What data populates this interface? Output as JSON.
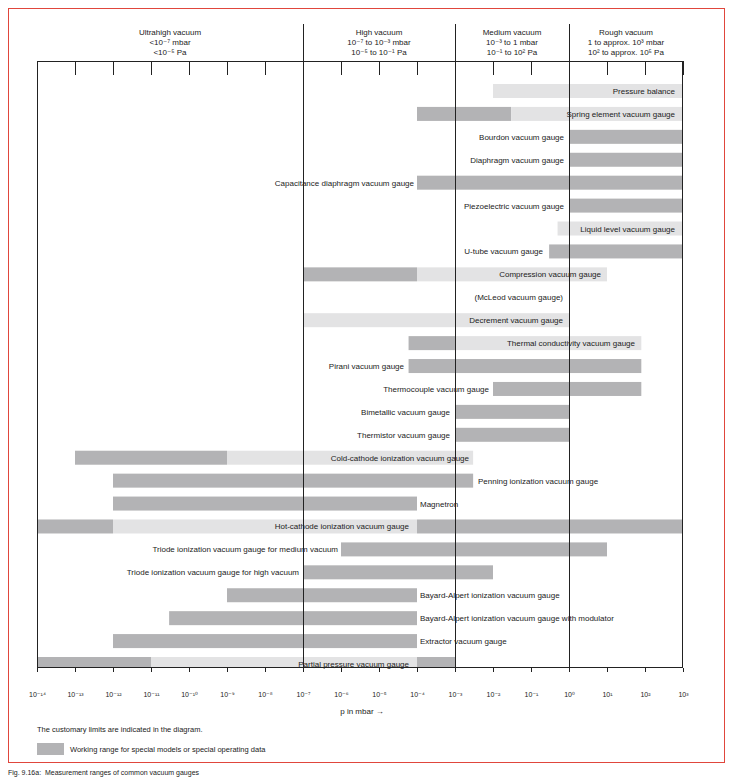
{
  "chart_data": {
    "type": "range_bar",
    "orientation": "horizontal",
    "log": "x",
    "xlim": [
      1e-14,
      1000
    ],
    "xticks": [
      {
        "value": 1e-14,
        "label": "10⁻¹⁴"
      },
      {
        "value": 1e-13,
        "label": "10⁻¹³"
      },
      {
        "value": 1e-12,
        "label": "10⁻¹²"
      },
      {
        "value": 1e-11,
        "label": "10⁻¹¹"
      },
      {
        "value": 1e-10,
        "label": "10⁻¹⁰"
      },
      {
        "value": 1e-09,
        "label": "10⁻⁹"
      },
      {
        "value": 1e-08,
        "label": "10⁻⁸"
      },
      {
        "value": 1e-07,
        "label": "10⁻⁷"
      },
      {
        "value": 1e-06,
        "label": "10⁻⁶"
      },
      {
        "value": 1e-05,
        "label": "10⁻⁵"
      },
      {
        "value": 0.0001,
        "label": "10⁻⁴"
      },
      {
        "value": 0.001,
        "label": "10⁻³"
      },
      {
        "value": 0.01,
        "label": "10⁻²"
      },
      {
        "value": 0.1,
        "label": "10⁻¹"
      },
      {
        "value": 1,
        "label": "10⁰"
      },
      {
        "value": 10,
        "label": "10¹"
      },
      {
        "value": 100,
        "label": "10²"
      },
      {
        "value": 1000,
        "label": "10³"
      }
    ],
    "xlabel": "p in mbar →",
    "regions": [
      {
        "name": "Ultrahigh vacuum",
        "mbar": "<10⁻⁷ mbar",
        "pa": "<10⁻⁵ Pa",
        "from": 1e-14,
        "to": 1e-07
      },
      {
        "name": "High vacuum",
        "mbar": "10⁻⁷ to 10⁻³ mbar",
        "pa": "10⁻⁵ to 10⁻¹ Pa",
        "from": 1e-07,
        "to": 0.001
      },
      {
        "name": "Medium vacuum",
        "mbar": "10⁻³ to 1 mbar",
        "pa": "10⁻¹ to 10² Pa",
        "from": 0.001,
        "to": 1
      },
      {
        "name": "Rough vacuum",
        "mbar": "1 to approx. 10³ mbar",
        "pa": "10² to approx. 10⁵ Pa",
        "from": 1,
        "to": 1000
      }
    ],
    "categories": [
      "Pressure balance",
      "Spring element vacuum gauge",
      "Bourdon vacuum gauge",
      "Diaphragm vacuum gauge",
      "Capacitance diaphragm vacuum gauge",
      "Piezoelectric vacuum gauge",
      "Liquid level vacuum gauge",
      "U-tube vacuum gauge",
      "Compression vacuum gauge",
      "(McLeod vacuum gauge)",
      "Decrement vacuum gauge",
      "Thermal conductivity vacuum gauge",
      "Pirani vacuum gauge",
      "Thermocouple vacuum gauge",
      "Bimetallic vacuum gauge",
      "Thermistor vacuum gauge",
      "Cold-cathode ionization vacuum gauge",
      "Penning ionization vacuum gauge",
      "Magnetron",
      "Hot-cathode ionization vacuum gauge",
      "Triode ionization vacuum gauge for medium vacuum",
      "Triode ionization vacuum gauge for high vacuum",
      "Bayard-Alpert ionization vacuum gauge",
      "Bayard-Alpert ionization vacuum gauge with modulator",
      "Extractor vacuum gauge",
      "Partial pressure vacuum gauge"
    ],
    "ranges": [
      [
        {
          "from": 0.01,
          "to": 1000,
          "color": "#e3e3e4"
        }
      ],
      [
        {
          "from": 0.0001,
          "to": 0.03,
          "color": "#b3b3b5"
        },
        {
          "from": 0.03,
          "to": 1000,
          "color": "#e3e3e4"
        }
      ],
      [
        {
          "from": 1,
          "to": 1000,
          "color": "#b3b3b5"
        }
      ],
      [
        {
          "from": 1,
          "to": 1000,
          "color": "#b3b3b5"
        }
      ],
      [
        {
          "from": 0.0001,
          "to": 1000,
          "color": "#b3b3b5"
        }
      ],
      [
        {
          "from": 1,
          "to": 1000,
          "color": "#b3b3b5"
        }
      ],
      [
        {
          "from": 0.5,
          "to": 1000,
          "color": "#e3e3e4"
        }
      ],
      [
        {
          "from": 0.3,
          "to": 1000,
          "color": "#b3b3b5"
        }
      ],
      [
        {
          "from": 1e-07,
          "to": 0.0001,
          "color": "#b3b3b5"
        },
        {
          "from": 0.0001,
          "to": 10,
          "color": "#e3e3e4"
        }
      ],
      [],
      [
        {
          "from": 1e-07,
          "to": 1,
          "color": "#e3e3e4"
        }
      ],
      [
        {
          "from": 6e-05,
          "to": 0.001,
          "color": "#b3b3b5"
        },
        {
          "from": 0.001,
          "to": 80,
          "color": "#e3e3e4"
        }
      ],
      [
        {
          "from": 6e-05,
          "to": 80,
          "color": "#b3b3b5"
        }
      ],
      [
        {
          "from": 0.01,
          "to": 80,
          "color": "#b3b3b5"
        }
      ],
      [
        {
          "from": 0.001,
          "to": 1,
          "color": "#b3b3b5"
        }
      ],
      [
        {
          "from": 0.001,
          "to": 1,
          "color": "#b3b3b5"
        }
      ],
      [
        {
          "from": 1e-13,
          "to": 1e-09,
          "color": "#b3b3b5"
        },
        {
          "from": 1e-09,
          "to": 0.003,
          "color": "#e3e3e4"
        }
      ],
      [
        {
          "from": 1e-12,
          "to": 0.003,
          "color": "#b3b3b5"
        }
      ],
      [
        {
          "from": 1e-12,
          "to": 0.0001,
          "color": "#b3b3b5"
        }
      ],
      [
        {
          "from": 1e-14,
          "to": 1e-12,
          "color": "#b3b3b5"
        },
        {
          "from": 1e-12,
          "to": 0.0001,
          "color": "#e3e3e4"
        },
        {
          "from": 0.0001,
          "to": 1000,
          "color": "#b3b3b5"
        }
      ],
      [
        {
          "from": 1e-06,
          "to": 10,
          "color": "#b3b3b5"
        }
      ],
      [
        {
          "from": 1e-07,
          "to": 0.01,
          "color": "#b3b3b5"
        }
      ],
      [
        {
          "from": 1e-09,
          "to": 0.0001,
          "color": "#b3b3b5"
        }
      ],
      [
        {
          "from": 3e-11,
          "to": 0.0001,
          "color": "#b3b3b5"
        }
      ],
      [
        {
          "from": 1e-12,
          "to": 0.0001,
          "color": "#b3b3b5"
        }
      ],
      [
        {
          "from": 1e-14,
          "to": 1e-11,
          "color": "#b3b3b5"
        },
        {
          "from": 1e-11,
          "to": 0.0001,
          "color": "#e3e3e4"
        },
        {
          "from": 0.0001,
          "to": 0.001,
          "color": "#b3b3b5"
        }
      ]
    ],
    "note": "The customary limits are indicated in the diagram.",
    "legend_label": "Working range for special models or special operating data",
    "legend_color": "#b3b3b5",
    "caption": "Fig. 9.16a:  Measurement ranges of common vacuum gauges"
  }
}
